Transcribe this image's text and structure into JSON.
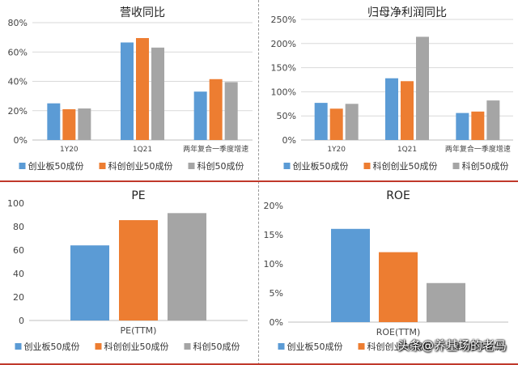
{
  "colors": {
    "series1": "#5b9bd5",
    "series2": "#ed7d31",
    "series3": "#a5a5a5",
    "divider": "#c0392b"
  },
  "legend_labels": [
    "创业板50成份",
    "科创创业50成份",
    "科创50成份"
  ],
  "watermark": "头条@养基场的老马",
  "chart_data": [
    {
      "id": "revenue",
      "type": "bar",
      "title": "营收同比",
      "categories": [
        "1Y20",
        "1Q21",
        "两年复合一季度增速"
      ],
      "series": [
        {
          "name": "创业板50成份",
          "values": [
            25,
            66.5,
            33
          ]
        },
        {
          "name": "科创创业50成份",
          "values": [
            21,
            69.5,
            41.5
          ]
        },
        {
          "name": "科创50成份",
          "values": [
            21.5,
            63,
            39.5
          ]
        }
      ],
      "ylim": [
        0,
        80
      ],
      "yticks": [
        0,
        20,
        40,
        60,
        80
      ],
      "ytick_labels": [
        "0%",
        "20%",
        "40%",
        "60%",
        "80%"
      ],
      "grid": true,
      "legend": "bottom"
    },
    {
      "id": "netprofit",
      "type": "bar",
      "title": "归母净利润同比",
      "categories": [
        "1Y20",
        "1Q21",
        "两年复合一季度增速"
      ],
      "series": [
        {
          "name": "创业板50成份",
          "values": [
            77,
            128,
            56
          ]
        },
        {
          "name": "科创创业50成份",
          "values": [
            65,
            122,
            59
          ]
        },
        {
          "name": "科创50成份",
          "values": [
            75,
            214,
            82
          ]
        }
      ],
      "ylim": [
        0,
        250
      ],
      "yticks": [
        0,
        50,
        100,
        150,
        200,
        250
      ],
      "ytick_labels": [
        "0%",
        "50%",
        "100%",
        "150%",
        "200%",
        "250%"
      ],
      "grid": true,
      "legend": "bottom"
    },
    {
      "id": "pe",
      "type": "bar",
      "title": "PE",
      "categories": [
        "PE(TTM)"
      ],
      "series": [
        {
          "name": "创业板50成份",
          "values": [
            64
          ]
        },
        {
          "name": "科创创业50成份",
          "values": [
            85.5
          ]
        },
        {
          "name": "科创50成份",
          "values": [
            91.5
          ]
        }
      ],
      "ylim": [
        0,
        100
      ],
      "yticks": [
        0,
        20,
        40,
        60,
        80,
        100
      ],
      "ytick_labels": [
        "0",
        "20",
        "40",
        "60",
        "80",
        "100"
      ],
      "grid": false,
      "legend": "bottom"
    },
    {
      "id": "roe",
      "type": "bar",
      "title": "ROE",
      "categories": [
        "ROE(TTM)"
      ],
      "series": [
        {
          "name": "创业板50成份",
          "values": [
            16
          ]
        },
        {
          "name": "科创创业50成份",
          "values": [
            12
          ]
        },
        {
          "name": "科创50成份",
          "values": [
            6.7
          ]
        }
      ],
      "ylim": [
        0,
        20
      ],
      "yticks": [
        0,
        5,
        10,
        15,
        20
      ],
      "ytick_labels": [
        "0%",
        "5%",
        "10%",
        "15%",
        "20%"
      ],
      "grid": false,
      "legend": "bottom"
    }
  ]
}
